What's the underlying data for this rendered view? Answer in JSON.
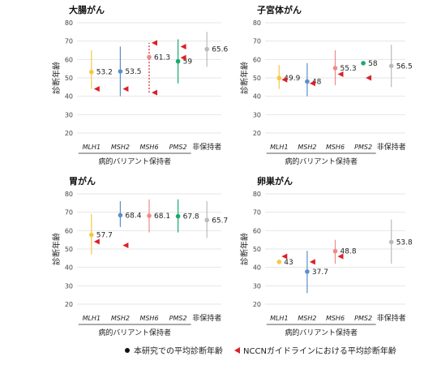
{
  "colors": {
    "MLH1": "#f5c842",
    "MSH2": "#5b8fc9",
    "MSH6": "#f08a8a",
    "PMS2": "#1aaa6e",
    "non": "#bbbbbb",
    "nccn": "#dd1f26",
    "grid": "#e6e6e6",
    "axis_text": "#444444"
  },
  "legend": {
    "study_mean": "本研究での平均診断年齢",
    "nccn_mean": "NCCNガイドラインにおける平均診断年齢"
  },
  "chart_data": [
    {
      "type": "scatter",
      "title": "大腸がん",
      "ylabel": "診断年齢",
      "xlabel": "病的バリアント保持者",
      "ylim": [
        20,
        80
      ],
      "yticks": [
        20,
        30,
        40,
        50,
        60,
        70,
        80
      ],
      "categories": [
        "MLH1",
        "MSH2",
        "MSH6",
        "PMS2",
        "非保持者"
      ],
      "italic_categories": [
        true,
        true,
        true,
        true,
        false
      ],
      "group_categories": [
        "MLH1",
        "MSH2",
        "MSH6",
        "PMS2"
      ],
      "points": [
        {
          "category": "MLH1",
          "mean": 53.2,
          "low": 44,
          "high": 65,
          "label": "53.2",
          "dashed": false
        },
        {
          "category": "MSH2",
          "mean": 53.5,
          "low": 40,
          "high": 67,
          "label": "53.5",
          "dashed": false
        },
        {
          "category": "MSH6",
          "mean": 61.3,
          "low": 42,
          "high": 69,
          "label": "61.3",
          "dashed": true
        },
        {
          "category": "PMS2",
          "mean": 59,
          "low": 47,
          "high": 71,
          "label": "59",
          "dashed": false
        },
        {
          "category": "非保持者",
          "mean": 65.6,
          "low": 56,
          "high": 75,
          "label": "65.6",
          "dashed": false
        }
      ],
      "nccn": [
        {
          "category": "MLH1",
          "value": 44
        },
        {
          "category": "MSH2",
          "value": 44
        },
        {
          "category": "MSH6",
          "value": 69
        },
        {
          "category": "MSH6",
          "value": 42
        },
        {
          "category": "PMS2",
          "value": 67
        },
        {
          "category": "PMS2",
          "value": 61
        }
      ]
    },
    {
      "type": "scatter",
      "title": "子宮体がん",
      "ylabel": "診断年齢",
      "xlabel": "病的バリアント保持者",
      "ylim": [
        20,
        80
      ],
      "yticks": [
        20,
        30,
        40,
        50,
        60,
        70,
        80
      ],
      "categories": [
        "MLH1",
        "MSH2",
        "MSH6",
        "PMS2",
        "非保持者"
      ],
      "italic_categories": [
        true,
        true,
        true,
        true,
        false
      ],
      "group_categories": [
        "MLH1",
        "MSH2",
        "MSH6",
        "PMS2"
      ],
      "points": [
        {
          "category": "MLH1",
          "mean": 49.9,
          "low": 44,
          "high": 57,
          "label": "49.9",
          "dashed": false
        },
        {
          "category": "MSH2",
          "mean": 48,
          "low": 40,
          "high": 58,
          "label": "48",
          "dashed": false
        },
        {
          "category": "MSH6",
          "mean": 55.3,
          "low": 46,
          "high": 65,
          "label": "55.3",
          "dashed": false
        },
        {
          "category": "PMS2",
          "mean": 58,
          "low": null,
          "high": null,
          "label": "58",
          "dashed": false
        },
        {
          "category": "非保持者",
          "mean": 56.5,
          "low": 45,
          "high": 68,
          "label": "56.5",
          "dashed": false
        }
      ],
      "nccn": [
        {
          "category": "MLH1",
          "value": 49
        },
        {
          "category": "MSH2",
          "value": 47
        },
        {
          "category": "MSH6",
          "value": 52
        },
        {
          "category": "PMS2",
          "value": 50
        }
      ]
    },
    {
      "type": "scatter",
      "title": "胃がん",
      "ylabel": "診断年齢",
      "xlabel": "病的バリアント保持者",
      "ylim": [
        20,
        80
      ],
      "yticks": [
        20,
        30,
        40,
        50,
        60,
        70,
        80
      ],
      "categories": [
        "MLH1",
        "MSH2",
        "MSH6",
        "PMS2",
        "非保持者"
      ],
      "italic_categories": [
        true,
        true,
        true,
        true,
        false
      ],
      "group_categories": [
        "MLH1",
        "MSH2",
        "MSH6",
        "PMS2"
      ],
      "points": [
        {
          "category": "MLH1",
          "mean": 57.7,
          "low": 47,
          "high": 69,
          "label": "57.7",
          "dashed": false
        },
        {
          "category": "MSH2",
          "mean": 68.4,
          "low": 62,
          "high": 76,
          "label": "68.4",
          "dashed": false
        },
        {
          "category": "MSH6",
          "mean": 68.1,
          "low": 59,
          "high": 77,
          "label": "68.1",
          "dashed": false
        },
        {
          "category": "PMS2",
          "mean": 67.8,
          "low": 59,
          "high": 77,
          "label": "67.8",
          "dashed": false
        },
        {
          "category": "非保持者",
          "mean": 65.7,
          "low": 56,
          "high": 76,
          "label": "65.7",
          "dashed": false
        }
      ],
      "nccn": [
        {
          "category": "MLH1",
          "value": 54
        },
        {
          "category": "MSH2",
          "value": 52
        }
      ]
    },
    {
      "type": "scatter",
      "title": "卵巣がん",
      "ylabel": "診断年齢",
      "xlabel": "病的バリアント保持者",
      "ylim": [
        20,
        80
      ],
      "yticks": [
        20,
        30,
        40,
        50,
        60,
        70,
        80
      ],
      "categories": [
        "MLH1",
        "MSH2",
        "MSH6",
        "PMS2",
        "非保持者"
      ],
      "italic_categories": [
        true,
        true,
        true,
        true,
        false
      ],
      "group_categories": [
        "MLH1",
        "MSH2",
        "MSH6",
        "PMS2"
      ],
      "points": [
        {
          "category": "MLH1",
          "mean": 43,
          "low": null,
          "high": null,
          "label": "43",
          "dashed": false
        },
        {
          "category": "MSH2",
          "mean": 37.7,
          "low": 26,
          "high": 49,
          "label": "37.7",
          "dashed": false
        },
        {
          "category": "MSH6",
          "mean": 48.8,
          "low": 42,
          "high": 55,
          "label": "48.8",
          "dashed": false
        },
        {
          "category": "非保持者",
          "mean": 53.8,
          "low": 42,
          "high": 66,
          "label": "53.8",
          "dashed": false
        }
      ],
      "nccn": [
        {
          "category": "MLH1",
          "value": 46
        },
        {
          "category": "MSH2",
          "value": 43
        },
        {
          "category": "MSH6",
          "value": 46
        }
      ]
    }
  ]
}
